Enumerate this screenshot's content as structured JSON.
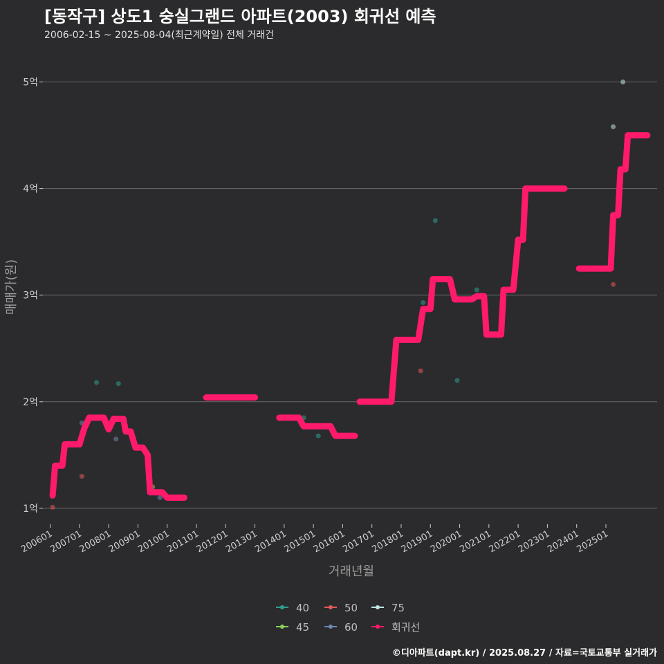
{
  "header": {
    "title": "[동작구] 상도1 숭실그랜드 아파트(2003) 회귀선 예측",
    "subtitle": "2006-02-15 ~ 2025-08-04(최근계약일) 전체 거래건"
  },
  "caption": "©디아파트(dapt.kr) / 2025.08.27 / 자료=국토교통부 실거래가",
  "chart_data": {
    "type": "line",
    "xlabel": "거래년월",
    "ylabel": "매매가(원)",
    "x_domain": [
      "2005-10",
      "2026-10"
    ],
    "ylim": [
      0.85,
      5.25
    ],
    "y_ticks": [
      {
        "value": 1,
        "label": "1억"
      },
      {
        "value": 2,
        "label": "2억"
      },
      {
        "value": 3,
        "label": "3억"
      },
      {
        "value": 4,
        "label": "4억"
      },
      {
        "value": 5,
        "label": "5억"
      }
    ],
    "x_ticks": [
      "200601",
      "200701",
      "200801",
      "200901",
      "201001",
      "201101",
      "201201",
      "201301",
      "201401",
      "201501",
      "201601",
      "201701",
      "201801",
      "201901",
      "202001",
      "202101",
      "202201",
      "202301",
      "202401",
      "202501"
    ],
    "grid": true,
    "legend": {
      "placement": "bottom",
      "entries": [
        {
          "label": "40",
          "color": "#2f9d8f"
        },
        {
          "label": "50",
          "color": "#e05a5a"
        },
        {
          "label": "75",
          "color": "#bfe6e3"
        },
        {
          "label": "45",
          "color": "#8ccf5a"
        },
        {
          "label": "60",
          "color": "#6f86b0"
        },
        {
          "label": "회귀선",
          "color": "#ff1a6c"
        }
      ]
    },
    "series": [
      {
        "name": "40",
        "color": "#2f9d8f",
        "points": [
          [
            "2007-08",
            2.18
          ],
          [
            "2008-05",
            2.17
          ],
          [
            "2014-09",
            1.85
          ],
          [
            "2015-03",
            1.68
          ],
          [
            "2018-10",
            2.93
          ],
          [
            "2019-03",
            3.7
          ],
          [
            "2019-12",
            2.2
          ],
          [
            "2020-08",
            3.05
          ]
        ]
      },
      {
        "name": "50",
        "color": "#e05a5a",
        "points": [
          [
            "2006-02",
            1.01
          ],
          [
            "2007-02",
            1.3
          ],
          [
            "2018-09",
            2.29
          ],
          [
            "2025-04",
            3.1
          ]
        ]
      },
      {
        "name": "75",
        "color": "#bfe6e3",
        "points": [
          [
            "2025-04",
            4.58
          ],
          [
            "2025-08",
            5.0
          ]
        ]
      },
      {
        "name": "45",
        "color": "#8ccf5a",
        "points": [
          [
            "2009-07",
            1.2
          ]
        ]
      },
      {
        "name": "60",
        "color": "#6f86b0",
        "points": [
          [
            "2007-02",
            1.8
          ],
          [
            "2008-04",
            1.65
          ],
          [
            "2009-10",
            1.1
          ]
        ]
      },
      {
        "name": "회귀선",
        "color": "#ff1a6c",
        "kind": "line",
        "segments": [
          [
            [
              "2006-02",
              1.12
            ],
            [
              "2006-03",
              1.4
            ],
            [
              "2006-06",
              1.4
            ],
            [
              "2006-07",
              1.6
            ],
            [
              "2007-01",
              1.6
            ],
            [
              "2007-03",
              1.75
            ],
            [
              "2007-05",
              1.85
            ],
            [
              "2007-11",
              1.85
            ],
            [
              "2008-01",
              1.74
            ],
            [
              "2008-03",
              1.84
            ],
            [
              "2008-07",
              1.84
            ],
            [
              "2008-08",
              1.72
            ],
            [
              "2008-10",
              1.72
            ],
            [
              "2008-12",
              1.57
            ],
            [
              "2009-03",
              1.57
            ],
            [
              "2009-05",
              1.5
            ],
            [
              "2009-06",
              1.15
            ],
            [
              "2009-11",
              1.15
            ],
            [
              "2010-01",
              1.1
            ],
            [
              "2010-08",
              1.1
            ]
          ],
          [
            [
              "2011-05",
              2.04
            ],
            [
              "2013-01",
              2.04
            ]
          ],
          [
            [
              "2013-11",
              1.85
            ],
            [
              "2014-07",
              1.85
            ],
            [
              "2014-09",
              1.77
            ],
            [
              "2015-08",
              1.77
            ],
            [
              "2015-10",
              1.68
            ],
            [
              "2016-06",
              1.68
            ]
          ],
          [
            [
              "2016-08",
              2.0
            ],
            [
              "2017-09",
              2.0
            ],
            [
              "2017-11",
              2.58
            ],
            [
              "2018-08",
              2.58
            ],
            [
              "2018-10",
              2.87
            ],
            [
              "2019-01",
              2.87
            ],
            [
              "2019-02",
              3.15
            ],
            [
              "2019-09",
              3.15
            ],
            [
              "2019-11",
              2.96
            ],
            [
              "2020-06",
              2.96
            ],
            [
              "2020-08",
              2.99
            ],
            [
              "2020-11",
              2.99
            ],
            [
              "2020-12",
              2.63
            ],
            [
              "2021-06",
              2.63
            ],
            [
              "2021-07",
              3.05
            ],
            [
              "2021-11",
              3.05
            ],
            [
              "2022-01",
              3.52
            ],
            [
              "2022-03",
              3.52
            ],
            [
              "2022-04",
              4.0
            ],
            [
              "2023-08",
              4.0
            ]
          ],
          [
            [
              "2024-02",
              3.25
            ],
            [
              "2025-03",
              3.25
            ],
            [
              "2025-04",
              3.75
            ],
            [
              "2025-06",
              3.75
            ],
            [
              "2025-07",
              4.18
            ],
            [
              "2025-09",
              4.18
            ],
            [
              "2025-10",
              4.5
            ],
            [
              "2026-06",
              4.5
            ]
          ]
        ]
      }
    ]
  }
}
